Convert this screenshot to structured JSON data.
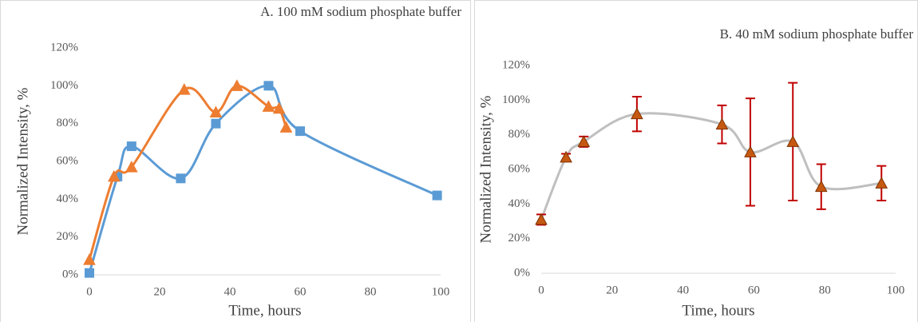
{
  "chart_data": [
    {
      "type": "line",
      "title": "A. 100 mM sodium phosphate buffer",
      "x_label": "Time, hours",
      "y_label": "Normalized Intensity, %",
      "xlim": [
        0,
        100
      ],
      "xticks": [
        0,
        20,
        40,
        60,
        80,
        100
      ],
      "ylim": [
        0,
        120
      ],
      "yticks": [
        {
          "value": 0,
          "label": "0%"
        },
        {
          "value": 20,
          "label": "20%"
        },
        {
          "value": 40,
          "label": "40%"
        },
        {
          "value": 60,
          "label": "60%"
        },
        {
          "value": 80,
          "label": "80%"
        },
        {
          "value": 100,
          "label": "100%"
        },
        {
          "value": 120,
          "label": "120%"
        }
      ],
      "smooth": true,
      "series": [
        {
          "color": "#5b9bd5",
          "marker": "square",
          "x": [
            0,
            8,
            12,
            26,
            36,
            51,
            60,
            99
          ],
          "values": [
            1,
            52,
            68,
            51,
            80,
            100,
            76,
            42
          ]
        },
        {
          "color": "#ed7d31",
          "marker": "triangle",
          "x": [
            0,
            7,
            12,
            27,
            36,
            42,
            51,
            54,
            56
          ],
          "values": [
            8,
            52,
            57,
            98,
            86,
            100,
            89,
            88,
            78
          ]
        }
      ]
    },
    {
      "type": "line",
      "title": "B. 40 mM sodium phosphate buffer",
      "x_label": "Time, hours",
      "y_label": "Normalized Intensity, %",
      "xlim": [
        0,
        100
      ],
      "xticks": [
        0,
        20,
        40,
        60,
        80,
        100
      ],
      "ylim": [
        0,
        120
      ],
      "yticks": [
        {
          "value": 0,
          "label": "0%"
        },
        {
          "value": 20,
          "label": "20%"
        },
        {
          "value": 40,
          "label": "40%"
        },
        {
          "value": 60,
          "label": "60%"
        },
        {
          "value": 80,
          "label": "80%"
        },
        {
          "value": 100,
          "label": "100%"
        },
        {
          "value": 120,
          "label": "120%"
        }
      ],
      "smooth": true,
      "series": [
        {
          "color": "#bfbfbf",
          "marker": "triangle",
          "marker_color": "#c65911",
          "error_color": "#c00000",
          "x": [
            0,
            7,
            12,
            27,
            51,
            59,
            71,
            79,
            96
          ],
          "values": [
            31,
            67,
            76,
            92,
            86,
            70,
            76,
            50,
            52
          ],
          "errors": [
            3,
            2,
            3,
            10,
            11,
            31,
            34,
            13,
            10
          ]
        }
      ]
    }
  ]
}
